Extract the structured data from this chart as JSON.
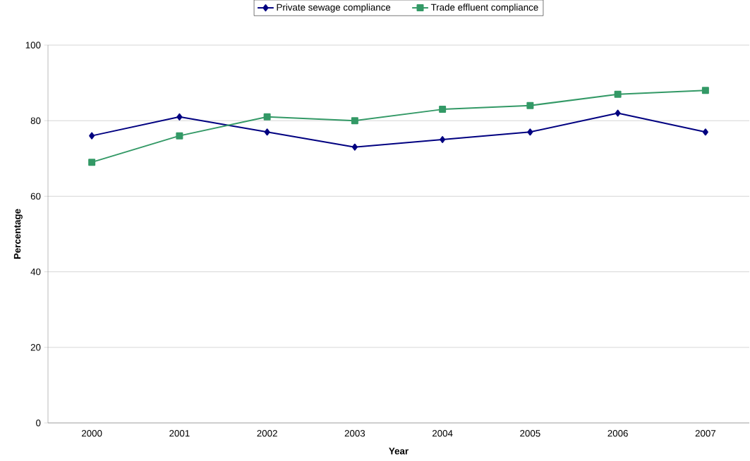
{
  "chart_data": {
    "type": "line",
    "xlabel": "Year",
    "ylabel": "Percentage",
    "categories": [
      "2000",
      "2001",
      "2002",
      "2003",
      "2004",
      "2005",
      "2006",
      "2007"
    ],
    "series": [
      {
        "name": "Private sewage compliance",
        "color": "#000080",
        "marker": "diamond",
        "values": [
          76,
          81,
          77,
          73,
          75,
          77,
          82,
          77
        ]
      },
      {
        "name": "Trade effluent compliance",
        "color": "#339966",
        "marker": "square",
        "values": [
          69,
          76,
          81,
          80,
          83,
          84,
          87,
          88
        ]
      }
    ],
    "ylim": [
      0,
      100
    ],
    "yticks": [
      0,
      20,
      40,
      60,
      80,
      100
    ],
    "grid": "y",
    "legend": "top",
    "line_style": "solid"
  }
}
